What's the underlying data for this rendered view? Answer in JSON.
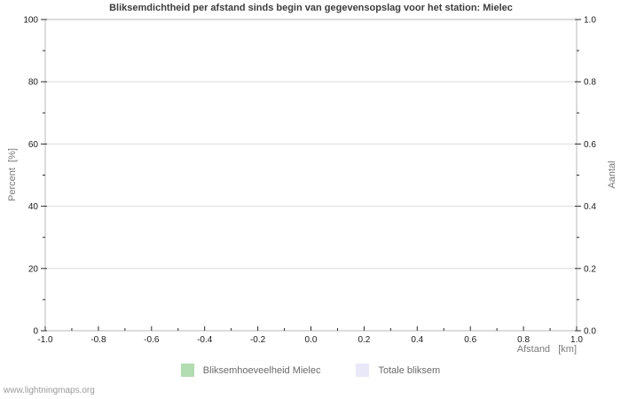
{
  "watermark": "www.lightningmaps.org",
  "colors": {
    "background": "#ffffff",
    "spine": "#b8b8b8",
    "grid": "#dcdcdc",
    "tick": "#2b2b2b",
    "title_text": "#3d3d3d",
    "tick_label": "#1a1a1a",
    "axis_label": "#7a7a7a",
    "legend_label": "#6a6a6a",
    "watermark_text": "#9a9a9a"
  },
  "chart_data": {
    "type": "bar",
    "title": "Bliksemdichtheid per afstand sinds begin van gegevensopslag voor het station: Mielec",
    "xlabel": "Afstand   [km]",
    "ylabel_left": "Percent  [%]",
    "ylabel_right": "Aantal",
    "xlim": [
      -1.0,
      1.0
    ],
    "ylim_left": [
      0,
      100
    ],
    "ylim_right": [
      0.0,
      1.0
    ],
    "x_tick_labels": [
      "-1.0",
      "-0.8",
      "-0.6",
      "-0.4",
      "-0.2",
      "0.0",
      "0.2",
      "0.4",
      "0.6",
      "0.8",
      "1.0"
    ],
    "x_minor_ticks_between_majors": 1,
    "y_tick_labels_left": [
      "0",
      "20",
      "40",
      "60",
      "80",
      "100"
    ],
    "y_tick_labels_right": [
      "0.0",
      "0.2",
      "0.4",
      "0.6",
      "0.8",
      "1.0"
    ],
    "y_minor_ticks_between_majors": 1,
    "grid": "horizontal-major-only",
    "legend_position": "bottom-center",
    "series": [
      {
        "name": "Bliksemhoeveelheid Mielec",
        "color": "#b2dcb2",
        "x": [],
        "values": []
      },
      {
        "name": "Totale bliksem",
        "color": "#e8e8f8",
        "x": [],
        "values": []
      }
    ]
  }
}
